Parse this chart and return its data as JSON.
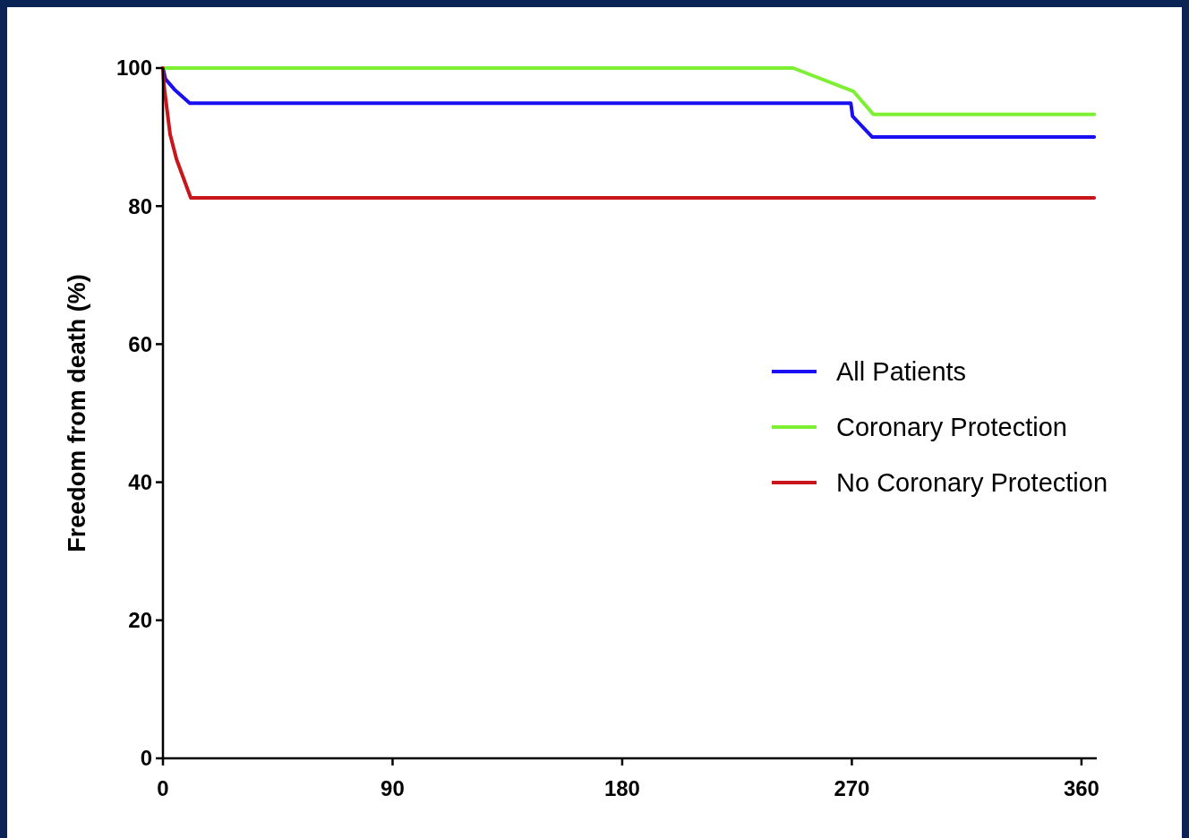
{
  "chart_data": {
    "type": "line",
    "ylabel": "Freedom from death (%)",
    "xlim": [
      0,
      366
    ],
    "xticks": [
      0,
      90,
      180,
      270,
      360
    ],
    "ylim": [
      0,
      100
    ],
    "yticks": [
      0,
      20,
      40,
      60,
      80,
      100
    ],
    "legend": "right",
    "grid": false,
    "marker": "none",
    "line_style": "solid",
    "series": [
      {
        "name": "All Patients",
        "color": "#1a0ff0",
        "x": [
          0,
          1,
          4.5,
          10.5,
          269.6,
          270.3,
          278,
          365
        ],
        "values": [
          100,
          98.4,
          96.9,
          94.9,
          94.9,
          93,
          90,
          90
        ]
      },
      {
        "name": "Coronary Protection",
        "color": "#7ef033",
        "x": [
          0,
          247,
          270.7,
          278.4,
          365
        ],
        "values": [
          100,
          100,
          96.6,
          93.3,
          93.3
        ]
      },
      {
        "name": "No Coronary Protection",
        "color": "#c8161d",
        "x": [
          0,
          0.4,
          2.8,
          5.3,
          10.9,
          365
        ],
        "values": [
          100,
          97.5,
          90.4,
          86.8,
          81.2,
          81.2
        ]
      }
    ]
  }
}
